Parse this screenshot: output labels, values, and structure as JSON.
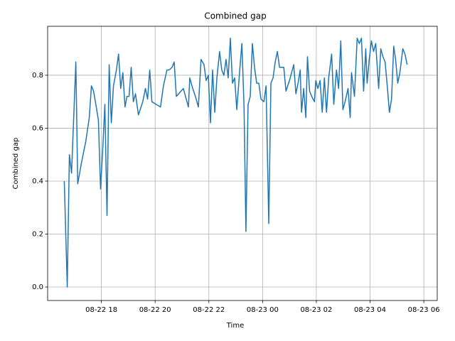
{
  "chart_data": {
    "type": "line",
    "title": "Combined gap",
    "x_label": "Time",
    "y_label": "Combined gap",
    "x": [
      16.62,
      16.73,
      16.81,
      16.89,
      17.05,
      17.12,
      17.26,
      17.42,
      17.55,
      17.63,
      17.71,
      17.81,
      17.89,
      17.97,
      18.05,
      18.13,
      18.21,
      18.29,
      18.37,
      18.45,
      18.56,
      18.64,
      18.72,
      18.8,
      18.88,
      18.95,
      19.03,
      19.11,
      19.19,
      19.27,
      19.38,
      19.54,
      19.64,
      19.72,
      19.8,
      19.88,
      20.2,
      20.31,
      20.44,
      20.52,
      20.63,
      20.71,
      20.79,
      21.05,
      21.24,
      21.29,
      21.4,
      21.5,
      21.61,
      21.71,
      21.82,
      21.9,
      21.98,
      22.06,
      22.14,
      22.22,
      22.3,
      22.4,
      22.48,
      22.56,
      22.64,
      22.72,
      22.8,
      22.88,
      22.96,
      23.04,
      23.15,
      23.23,
      23.31,
      23.38,
      23.46,
      23.54,
      23.62,
      23.7,
      23.78,
      23.86,
      23.94,
      24.05,
      24.13,
      24.23,
      24.31,
      24.39,
      24.47,
      24.55,
      24.63,
      24.71,
      24.79,
      24.87,
      25.0,
      25.08,
      25.16,
      25.24,
      25.32,
      25.4,
      25.45,
      25.53,
      25.61,
      25.67,
      25.75,
      25.83,
      25.93,
      25.98,
      26.06,
      26.14,
      26.22,
      26.3,
      26.38,
      26.46,
      26.57,
      26.65,
      26.75,
      26.83,
      26.91,
      26.99,
      27.07,
      27.18,
      27.26,
      27.31,
      27.42,
      27.52,
      27.6,
      27.68,
      27.76,
      27.84,
      27.89,
      27.97,
      28.05,
      28.13,
      28.21,
      28.32,
      28.4,
      28.48,
      28.56,
      28.64,
      28.72,
      28.8,
      28.88,
      28.95,
      29.03,
      29.11,
      29.22,
      29.3,
      29.38
    ],
    "series": [
      {
        "name": "Combined gap",
        "color": "#1f77b4",
        "values": [
          0.4,
          0.0,
          0.5,
          0.43,
          0.85,
          0.39,
          0.47,
          0.55,
          0.64,
          0.76,
          0.74,
          0.68,
          0.63,
          0.37,
          0.52,
          0.69,
          0.27,
          0.84,
          0.62,
          0.76,
          0.82,
          0.88,
          0.75,
          0.81,
          0.68,
          0.72,
          0.72,
          0.83,
          0.7,
          0.73,
          0.65,
          0.7,
          0.75,
          0.71,
          0.82,
          0.7,
          0.68,
          0.76,
          0.82,
          0.82,
          0.83,
          0.85,
          0.72,
          0.75,
          0.68,
          0.79,
          0.75,
          0.72,
          0.68,
          0.86,
          0.84,
          0.78,
          0.8,
          0.62,
          0.82,
          0.66,
          0.79,
          0.89,
          0.82,
          0.8,
          0.86,
          0.79,
          0.94,
          0.77,
          0.79,
          0.67,
          0.82,
          0.92,
          0.68,
          0.21,
          0.69,
          0.72,
          0.92,
          0.83,
          0.77,
          0.77,
          0.71,
          0.7,
          0.76,
          0.24,
          0.77,
          0.79,
          0.85,
          0.89,
          0.83,
          0.83,
          0.83,
          0.74,
          0.78,
          0.81,
          0.84,
          0.73,
          0.77,
          0.82,
          0.66,
          0.75,
          0.64,
          0.87,
          0.74,
          0.72,
          0.7,
          0.78,
          0.75,
          0.78,
          0.66,
          0.79,
          0.66,
          0.79,
          0.88,
          0.69,
          0.82,
          0.75,
          0.93,
          0.67,
          0.7,
          0.75,
          0.64,
          0.81,
          0.72,
          0.94,
          0.92,
          0.94,
          0.74,
          0.9,
          0.77,
          0.86,
          0.93,
          0.89,
          0.92,
          0.75,
          0.9,
          0.87,
          0.85,
          0.76,
          0.66,
          0.71,
          0.91,
          0.86,
          0.77,
          0.81,
          0.9,
          0.88,
          0.84
        ]
      }
    ],
    "xlim": [
      16.0,
      30.5
    ],
    "xticks": [
      {
        "value": 18,
        "label": "08-22 18"
      },
      {
        "value": 20,
        "label": "08-22 20"
      },
      {
        "value": 22,
        "label": "08-22 22"
      },
      {
        "value": 24,
        "label": "08-23 00"
      },
      {
        "value": 26,
        "label": "08-23 02"
      },
      {
        "value": 28,
        "label": "08-23 04"
      },
      {
        "value": 30,
        "label": "08-23 06"
      }
    ],
    "ylim": [
      -0.051,
      0.985
    ],
    "yticks": [
      {
        "value": 0,
        "label": "0.0"
      },
      {
        "value": 0.2,
        "label": "0.2"
      },
      {
        "value": 0.4,
        "label": "0.4"
      },
      {
        "value": 0.6,
        "label": "0.6"
      },
      {
        "value": 0.8,
        "label": "0.8"
      }
    ],
    "grid": true
  }
}
